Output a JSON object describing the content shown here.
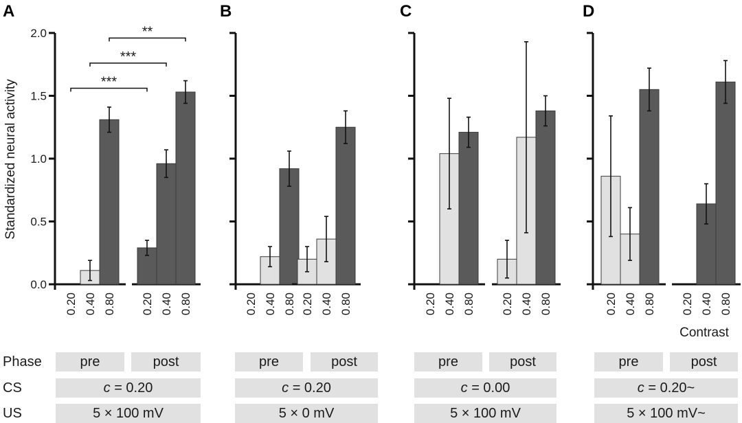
{
  "figure": {
    "row_labels": {
      "phase": "Phase",
      "cs": "CS",
      "us": "US"
    },
    "contrast_label": "Contrast",
    "colors": {
      "low_contrast_bar": "#e1e1e1",
      "high_response_bar": "#5a5a5a",
      "box_bg": "#e1e1e1",
      "axis": "#111111"
    }
  },
  "chart_data": [
    {
      "type": "bar",
      "panel": "A",
      "ylabel": "Standardized neural activity",
      "ylim": [
        0,
        2.0
      ],
      "yticks": [
        "0.0",
        "0.5",
        "1.0",
        "1.5",
        "2.0"
      ],
      "show_tick_labels": true,
      "groups": [
        {
          "phase": "pre",
          "categories": [
            "0.20",
            "0.40",
            "0.80"
          ],
          "values": [
            null,
            0.11,
            1.31
          ],
          "errors": [
            null,
            0.08,
            0.1
          ],
          "shade": [
            "none",
            "light",
            "dark"
          ]
        },
        {
          "phase": "post",
          "categories": [
            "0.20",
            "0.40",
            "0.80"
          ],
          "values": [
            0.29,
            0.96,
            1.53
          ],
          "errors": [
            0.06,
            0.11,
            0.09
          ],
          "shade": [
            "dark",
            "dark",
            "dark"
          ]
        }
      ],
      "significance": [
        {
          "label": "***",
          "from": "pre-0.20",
          "to": "post-0.20",
          "level": 1.56
        },
        {
          "label": "***",
          "from": "pre-0.40",
          "to": "post-0.40",
          "level": 1.76
        },
        {
          "label": "**",
          "from": "pre-0.80",
          "to": "post-0.80",
          "level": 1.96
        }
      ],
      "conditions": {
        "phase": [
          "pre",
          "post"
        ],
        "cs_var": "c",
        "cs_value": " = 0.20",
        "us": "5 × 100 mV"
      }
    },
    {
      "type": "bar",
      "panel": "B",
      "ylim": [
        0,
        2.0
      ],
      "show_tick_labels": false,
      "groups": [
        {
          "phase": "pre",
          "categories": [
            "0.20",
            "0.40",
            "0.80"
          ],
          "values": [
            null,
            0.22,
            0.92
          ],
          "errors": [
            null,
            0.08,
            0.14
          ],
          "shade": [
            "none",
            "light",
            "dark"
          ]
        },
        {
          "phase": "post",
          "categories": [
            "0.20",
            "0.40",
            "0.80"
          ],
          "values": [
            0.2,
            0.36,
            1.25
          ],
          "errors": [
            0.1,
            0.18,
            0.13
          ],
          "shade": [
            "light",
            "light",
            "dark"
          ]
        }
      ],
      "conditions": {
        "phase": [
          "pre",
          "post"
        ],
        "cs_var": "c",
        "cs_value": " = 0.20",
        "us": "5 × 0 mV"
      }
    },
    {
      "type": "bar",
      "panel": "C",
      "ylim": [
        0,
        2.0
      ],
      "show_tick_labels": false,
      "groups": [
        {
          "phase": "pre",
          "categories": [
            "0.20",
            "0.40",
            "0.80"
          ],
          "values": [
            null,
            1.04,
            1.21
          ],
          "errors": [
            null,
            0.44,
            0.12
          ],
          "shade": [
            "none",
            "light",
            "dark"
          ]
        },
        {
          "phase": "post",
          "categories": [
            "0.20",
            "0.40",
            "0.80"
          ],
          "values": [
            0.2,
            1.17,
            1.38
          ],
          "errors": [
            0.15,
            0.76,
            0.12
          ],
          "shade": [
            "light",
            "light",
            "dark"
          ]
        }
      ],
      "conditions": {
        "phase": [
          "pre",
          "post"
        ],
        "cs_var": "c",
        "cs_value": " = 0.00",
        "us": "5 × 100 mV"
      }
    },
    {
      "type": "bar",
      "panel": "D",
      "ylim": [
        0,
        2.0
      ],
      "show_tick_labels": false,
      "groups": [
        {
          "phase": "pre",
          "categories": [
            "0.20",
            "0.40",
            "0.80"
          ],
          "values": [
            0.86,
            0.4,
            1.55
          ],
          "errors": [
            0.48,
            0.21,
            0.17
          ],
          "shade": [
            "light",
            "light",
            "dark"
          ]
        },
        {
          "phase": "post",
          "categories": [
            "0.20",
            "0.40",
            "0.80"
          ],
          "values": [
            null,
            0.64,
            1.61
          ],
          "errors": [
            null,
            0.16,
            0.17
          ],
          "shade": [
            "none",
            "dark",
            "dark"
          ]
        }
      ],
      "conditions": {
        "phase": [
          "pre",
          "post"
        ],
        "cs_var": "c",
        "cs_value": " = 0.20~",
        "us": "5 × 100 mV~"
      }
    }
  ]
}
